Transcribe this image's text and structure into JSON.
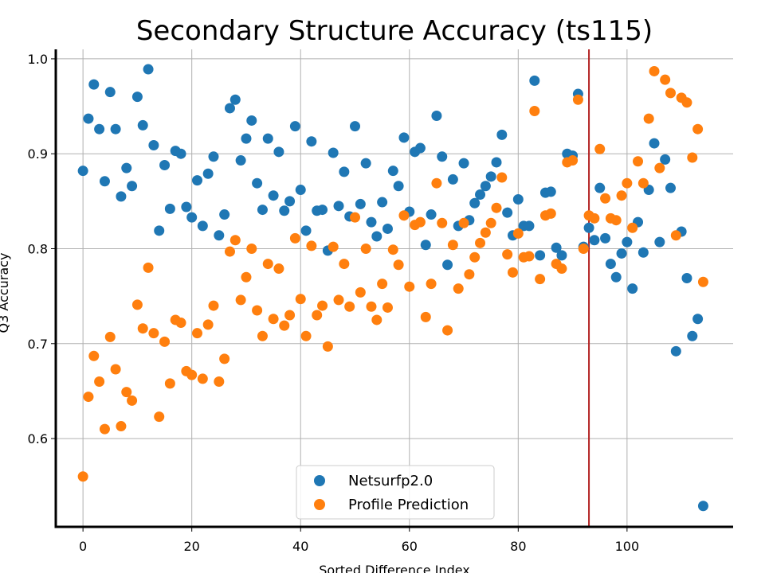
{
  "chart_data": {
    "type": "scatter",
    "title": "Secondary Structure Accuracy (ts115)",
    "xlabel": "Sorted Difference Index",
    "ylabel": "Q3 Accuracy",
    "xlim": [
      -5,
      119.5
    ],
    "ylim": [
      0.507,
      1.01
    ],
    "xticks": [
      0,
      20,
      40,
      60,
      80,
      100
    ],
    "yticks": [
      0.6,
      0.7,
      0.8,
      0.9,
      1.0
    ],
    "xtick_labels": [
      "0",
      "20",
      "40",
      "60",
      "80",
      "100"
    ],
    "ytick_labels": [
      "0.6",
      "0.7",
      "0.8",
      "0.9",
      "1.0"
    ],
    "grid": true,
    "legend_position": "bottom-center",
    "vline": {
      "x": 93,
      "color": "#b22222"
    },
    "series": [
      {
        "name": "Netsurfp2.0",
        "color": "#1f77b4",
        "x": [
          0,
          1,
          2,
          3,
          4,
          5,
          6,
          7,
          8,
          9,
          10,
          11,
          12,
          13,
          14,
          15,
          16,
          17,
          18,
          19,
          20,
          21,
          22,
          23,
          24,
          25,
          26,
          27,
          28,
          29,
          30,
          31,
          32,
          33,
          34,
          35,
          36,
          37,
          38,
          39,
          40,
          41,
          42,
          43,
          44,
          45,
          46,
          47,
          48,
          49,
          50,
          51,
          52,
          53,
          54,
          55,
          56,
          57,
          58,
          59,
          60,
          61,
          62,
          63,
          64,
          65,
          66,
          67,
          68,
          69,
          70,
          71,
          72,
          73,
          74,
          75,
          76,
          77,
          78,
          79,
          80,
          81,
          82,
          83,
          84,
          85,
          86,
          87,
          88,
          89,
          90,
          91,
          92,
          93,
          94,
          95,
          96,
          97,
          98,
          99,
          100,
          101,
          102,
          103,
          104,
          105,
          106,
          107,
          108,
          109,
          110,
          111,
          112,
          113,
          114
        ],
        "y": [
          0.882,
          0.937,
          0.973,
          0.926,
          0.871,
          0.965,
          0.926,
          0.855,
          0.885,
          0.866,
          0.96,
          0.93,
          0.989,
          0.909,
          0.819,
          0.888,
          0.842,
          0.903,
          0.9,
          0.844,
          0.833,
          0.872,
          0.824,
          0.879,
          0.897,
          0.814,
          0.836,
          0.948,
          0.957,
          0.893,
          0.916,
          0.935,
          0.869,
          0.841,
          0.916,
          0.856,
          0.902,
          0.84,
          0.85,
          0.929,
          0.862,
          0.819,
          0.913,
          0.84,
          0.841,
          0.798,
          0.901,
          0.845,
          0.881,
          0.834,
          0.929,
          0.847,
          0.89,
          0.828,
          0.813,
          0.849,
          0.821,
          0.882,
          0.866,
          0.917,
          0.839,
          0.902,
          0.906,
          0.804,
          0.836,
          0.94,
          0.897,
          0.783,
          0.873,
          0.824,
          0.89,
          0.83,
          0.848,
          0.857,
          0.866,
          0.876,
          0.891,
          0.92,
          0.838,
          0.814,
          0.852,
          0.824,
          0.824,
          0.977,
          0.793,
          0.859,
          0.86,
          0.801,
          0.793,
          0.9,
          0.898,
          0.963,
          0.802,
          0.822,
          0.809,
          0.864,
          0.811,
          0.784,
          0.77,
          0.795,
          0.807,
          0.758,
          0.828,
          0.796,
          0.862,
          0.911,
          0.807,
          0.894,
          0.864,
          0.692,
          0.818,
          0.769,
          0.708,
          0.726,
          0.529
        ]
      },
      {
        "name": "Profile Prediction",
        "color": "#ff7f0e",
        "x": [
          0,
          1,
          2,
          3,
          4,
          5,
          6,
          7,
          8,
          9,
          10,
          11,
          12,
          13,
          14,
          15,
          16,
          17,
          18,
          19,
          20,
          21,
          22,
          23,
          24,
          25,
          26,
          27,
          28,
          29,
          30,
          31,
          32,
          33,
          34,
          35,
          36,
          37,
          38,
          39,
          40,
          41,
          42,
          43,
          44,
          45,
          46,
          47,
          48,
          49,
          50,
          51,
          52,
          53,
          54,
          55,
          56,
          57,
          58,
          59,
          60,
          61,
          62,
          63,
          64,
          65,
          66,
          67,
          68,
          69,
          70,
          71,
          72,
          73,
          74,
          75,
          76,
          77,
          78,
          79,
          80,
          81,
          82,
          83,
          84,
          85,
          86,
          87,
          88,
          89,
          90,
          91,
          92,
          93,
          94,
          95,
          96,
          97,
          98,
          99,
          100,
          101,
          102,
          103,
          104,
          105,
          106,
          107,
          108,
          109,
          110,
          111,
          112,
          113,
          114
        ],
        "y": [
          0.56,
          0.644,
          0.687,
          0.66,
          0.61,
          0.707,
          0.673,
          0.613,
          0.649,
          0.64,
          0.741,
          0.716,
          0.78,
          0.711,
          0.623,
          0.702,
          0.658,
          0.725,
          0.722,
          0.671,
          0.667,
          0.711,
          0.663,
          0.72,
          0.74,
          0.66,
          0.684,
          0.797,
          0.809,
          0.746,
          0.77,
          0.8,
          0.735,
          0.708,
          0.784,
          0.726,
          0.779,
          0.719,
          0.73,
          0.811,
          0.747,
          0.708,
          0.803,
          0.73,
          0.74,
          0.697,
          0.802,
          0.746,
          0.784,
          0.739,
          0.833,
          0.754,
          0.8,
          0.739,
          0.725,
          0.763,
          0.738,
          0.799,
          0.783,
          0.835,
          0.76,
          0.825,
          0.828,
          0.728,
          0.763,
          0.869,
          0.827,
          0.714,
          0.804,
          0.758,
          0.827,
          0.773,
          0.791,
          0.806,
          0.817,
          0.827,
          0.843,
          0.875,
          0.794,
          0.775,
          0.816,
          0.791,
          0.792,
          0.945,
          0.768,
          0.835,
          0.837,
          0.784,
          0.779,
          0.891,
          0.893,
          0.957,
          0.8,
          0.835,
          0.832,
          0.905,
          0.853,
          0.832,
          0.83,
          0.856,
          0.869,
          0.822,
          0.892,
          0.869,
          0.937,
          0.987,
          0.885,
          0.978,
          0.964,
          0.814,
          0.959,
          0.954,
          0.896,
          0.926,
          0.765
        ]
      }
    ]
  }
}
